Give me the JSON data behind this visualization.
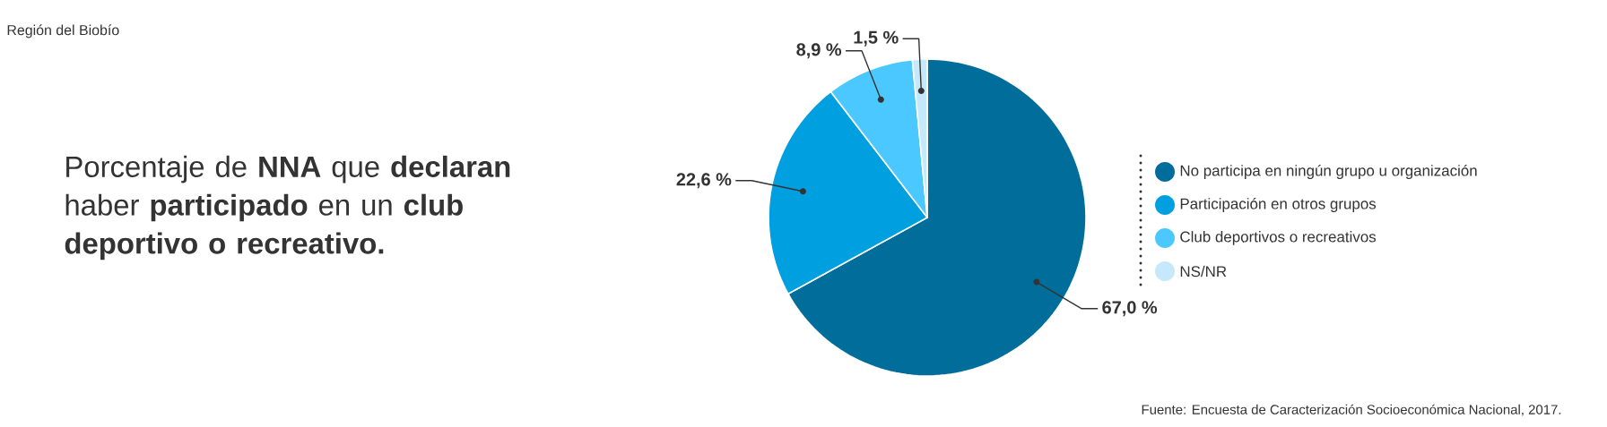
{
  "chart_data": {
    "type": "pie",
    "title": "Porcentaje de **NNA** que **declaran** haber **participado** en un **club deportivo o recreativo.**",
    "subtitle": "Región del Biobío",
    "categories": [
      "No participa en ningún grupo u organización",
      "Participación en otros grupos",
      "Club deportivos o recreativos",
      "NS/NR"
    ],
    "values": [
      67.0,
      22.6,
      8.9,
      1.5
    ],
    "colors": [
      "#006d9a",
      "#009fdf",
      "#4ac8ff",
      "#c5e8fb"
    ],
    "value_labels": [
      "67,0 %",
      "22,6 %",
      "8,9 %",
      "1,5 %"
    ],
    "legend": "right",
    "annotations": [
      "Fuente: Encuesta de Caracterización Socioeconómica Nacional, 2017."
    ]
  }
}
